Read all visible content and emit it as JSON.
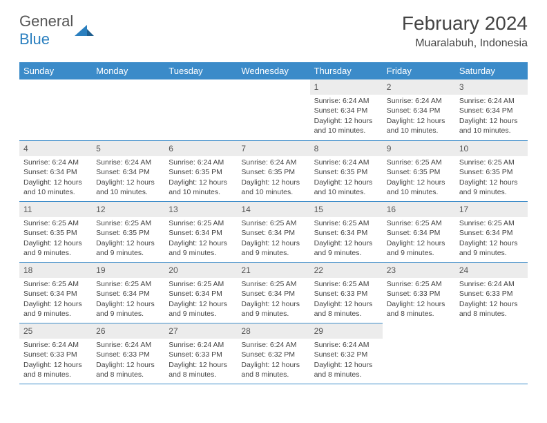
{
  "logo": {
    "text1": "General",
    "text2": "Blue"
  },
  "header": {
    "title": "February 2024",
    "location": "Muaralabuh, Indonesia"
  },
  "colors": {
    "header_bg": "#3b8bc9",
    "header_text": "#ffffff",
    "daynum_bg": "#ececec",
    "rule": "#3b8bc9",
    "body_text": "#444444"
  },
  "weekdays": [
    "Sunday",
    "Monday",
    "Tuesday",
    "Wednesday",
    "Thursday",
    "Friday",
    "Saturday"
  ],
  "weeks": [
    [
      null,
      null,
      null,
      null,
      {
        "n": "1",
        "sr": "6:24 AM",
        "ss": "6:34 PM",
        "dl": "12 hours and 10 minutes."
      },
      {
        "n": "2",
        "sr": "6:24 AM",
        "ss": "6:34 PM",
        "dl": "12 hours and 10 minutes."
      },
      {
        "n": "3",
        "sr": "6:24 AM",
        "ss": "6:34 PM",
        "dl": "12 hours and 10 minutes."
      }
    ],
    [
      {
        "n": "4",
        "sr": "6:24 AM",
        "ss": "6:34 PM",
        "dl": "12 hours and 10 minutes."
      },
      {
        "n": "5",
        "sr": "6:24 AM",
        "ss": "6:34 PM",
        "dl": "12 hours and 10 minutes."
      },
      {
        "n": "6",
        "sr": "6:24 AM",
        "ss": "6:35 PM",
        "dl": "12 hours and 10 minutes."
      },
      {
        "n": "7",
        "sr": "6:24 AM",
        "ss": "6:35 PM",
        "dl": "12 hours and 10 minutes."
      },
      {
        "n": "8",
        "sr": "6:24 AM",
        "ss": "6:35 PM",
        "dl": "12 hours and 10 minutes."
      },
      {
        "n": "9",
        "sr": "6:25 AM",
        "ss": "6:35 PM",
        "dl": "12 hours and 10 minutes."
      },
      {
        "n": "10",
        "sr": "6:25 AM",
        "ss": "6:35 PM",
        "dl": "12 hours and 9 minutes."
      }
    ],
    [
      {
        "n": "11",
        "sr": "6:25 AM",
        "ss": "6:35 PM",
        "dl": "12 hours and 9 minutes."
      },
      {
        "n": "12",
        "sr": "6:25 AM",
        "ss": "6:35 PM",
        "dl": "12 hours and 9 minutes."
      },
      {
        "n": "13",
        "sr": "6:25 AM",
        "ss": "6:34 PM",
        "dl": "12 hours and 9 minutes."
      },
      {
        "n": "14",
        "sr": "6:25 AM",
        "ss": "6:34 PM",
        "dl": "12 hours and 9 minutes."
      },
      {
        "n": "15",
        "sr": "6:25 AM",
        "ss": "6:34 PM",
        "dl": "12 hours and 9 minutes."
      },
      {
        "n": "16",
        "sr": "6:25 AM",
        "ss": "6:34 PM",
        "dl": "12 hours and 9 minutes."
      },
      {
        "n": "17",
        "sr": "6:25 AM",
        "ss": "6:34 PM",
        "dl": "12 hours and 9 minutes."
      }
    ],
    [
      {
        "n": "18",
        "sr": "6:25 AM",
        "ss": "6:34 PM",
        "dl": "12 hours and 9 minutes."
      },
      {
        "n": "19",
        "sr": "6:25 AM",
        "ss": "6:34 PM",
        "dl": "12 hours and 9 minutes."
      },
      {
        "n": "20",
        "sr": "6:25 AM",
        "ss": "6:34 PM",
        "dl": "12 hours and 9 minutes."
      },
      {
        "n": "21",
        "sr": "6:25 AM",
        "ss": "6:34 PM",
        "dl": "12 hours and 9 minutes."
      },
      {
        "n": "22",
        "sr": "6:25 AM",
        "ss": "6:33 PM",
        "dl": "12 hours and 8 minutes."
      },
      {
        "n": "23",
        "sr": "6:25 AM",
        "ss": "6:33 PM",
        "dl": "12 hours and 8 minutes."
      },
      {
        "n": "24",
        "sr": "6:24 AM",
        "ss": "6:33 PM",
        "dl": "12 hours and 8 minutes."
      }
    ],
    [
      {
        "n": "25",
        "sr": "6:24 AM",
        "ss": "6:33 PM",
        "dl": "12 hours and 8 minutes."
      },
      {
        "n": "26",
        "sr": "6:24 AM",
        "ss": "6:33 PM",
        "dl": "12 hours and 8 minutes."
      },
      {
        "n": "27",
        "sr": "6:24 AM",
        "ss": "6:33 PM",
        "dl": "12 hours and 8 minutes."
      },
      {
        "n": "28",
        "sr": "6:24 AM",
        "ss": "6:32 PM",
        "dl": "12 hours and 8 minutes."
      },
      {
        "n": "29",
        "sr": "6:24 AM",
        "ss": "6:32 PM",
        "dl": "12 hours and 8 minutes."
      },
      null,
      null
    ]
  ],
  "labels": {
    "sunrise": "Sunrise:",
    "sunset": "Sunset:",
    "daylight": "Daylight:"
  }
}
